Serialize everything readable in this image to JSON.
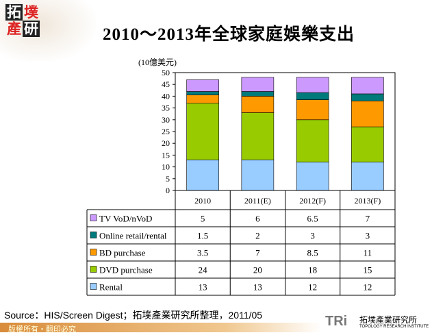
{
  "header": {
    "logo": "拓墣產研",
    "title": "2010～2013年全球家庭娛樂支出"
  },
  "chart_data": {
    "type": "bar",
    "stacked": true,
    "title": "2010～2013年全球家庭娛樂支出",
    "ylabel": "(10億美元)",
    "ylim": [
      0,
      50
    ],
    "yticks": [
      0,
      5,
      10,
      15,
      20,
      25,
      30,
      35,
      40,
      45,
      50
    ],
    "categories": [
      "2010",
      "2011(E)",
      "2012(F)",
      "2013(F)"
    ],
    "series": [
      {
        "name": "Rental",
        "values": [
          13,
          13,
          12,
          12
        ],
        "color": "#99ccff"
      },
      {
        "name": "DVD purchase",
        "values": [
          24,
          20,
          18,
          15
        ],
        "color": "#99cc00"
      },
      {
        "name": "BD purchase",
        "values": [
          3.5,
          7,
          8.5,
          11
        ],
        "color": "#ff9900"
      },
      {
        "name": "Online retail/rental",
        "values": [
          1.5,
          2,
          3,
          3
        ],
        "color": "#007a7a"
      },
      {
        "name": "TV VoD/nVoD",
        "values": [
          5,
          6,
          6.5,
          7
        ],
        "color": "#cc99ff"
      }
    ],
    "legend": "data-table"
  },
  "footer": {
    "source": "Source：HIS/Screen Digest；拓墣產業研究所整理，2011/05",
    "copyright": "版權所有・翻印必究",
    "brand": "TRi",
    "brand_cn": "拓墣產業研究所",
    "brand_en": "TOPOLOGY RESEARCH INSTITUTE"
  }
}
